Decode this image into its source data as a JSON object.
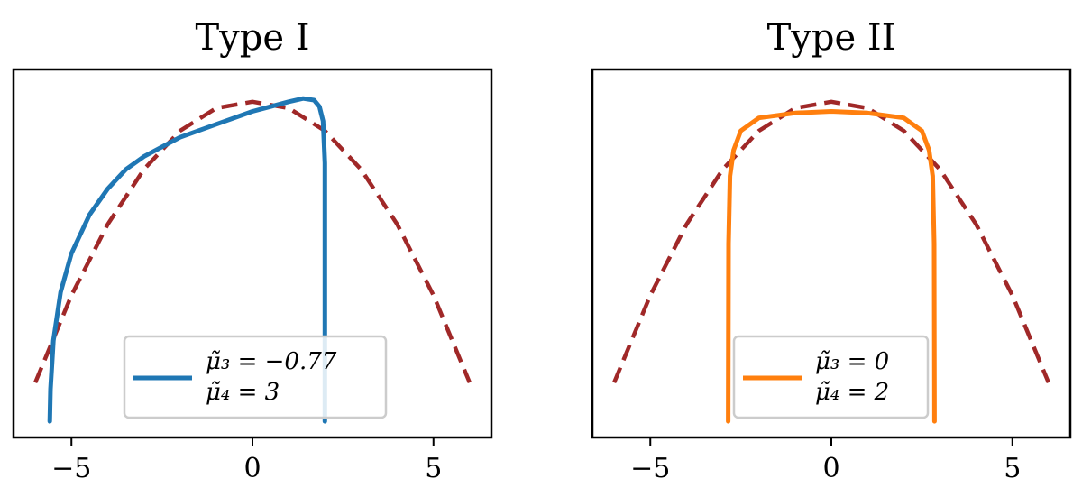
{
  "chart_data": [
    {
      "type": "line",
      "title": "Type I",
      "xlim": [
        -6.6,
        6.6
      ],
      "ylim": [
        -0.05,
        1.09
      ],
      "xticks": [
        -5,
        0,
        5
      ],
      "xtick_labels": [
        "−5",
        "0",
        "5"
      ],
      "y_ticks_shown": false,
      "grid": false,
      "legend_position": "lower-center",
      "series": [
        {
          "name": "μ̃₃ = −0.77 • μ̃₄ = 3",
          "legend_lines": [
            "μ̃₃ = −0.77",
            "μ̃₄ = 3"
          ],
          "style": "solid",
          "color": "#1f77b4",
          "x": [
            -5.6,
            -5.58,
            -5.5,
            -5.3,
            -5.0,
            -4.5,
            -4.0,
            -3.5,
            -3.0,
            -2.0,
            -1.0,
            0.0,
            0.5,
            1.0,
            1.4,
            1.7,
            1.85,
            1.95,
            2.0,
            2.0
          ],
          "y": [
            0.0,
            0.1,
            0.25,
            0.4,
            0.52,
            0.64,
            0.72,
            0.78,
            0.82,
            0.88,
            0.92,
            0.96,
            0.975,
            0.99,
            1.0,
            0.995,
            0.975,
            0.93,
            0.8,
            0.0
          ]
        },
        {
          "style": "dashed",
          "color": "#a02828",
          "x": [
            -6.0,
            -5.0,
            -4.0,
            -3.0,
            -2.0,
            -1.0,
            0.0,
            1.0,
            2.0,
            3.0,
            4.0,
            5.0,
            6.0
          ],
          "y": [
            0.12,
            0.39,
            0.61,
            0.78,
            0.9,
            0.97,
            0.99,
            0.97,
            0.9,
            0.78,
            0.61,
            0.39,
            0.12
          ]
        }
      ]
    },
    {
      "type": "line",
      "title": "Type II",
      "xlim": [
        -6.6,
        6.6
      ],
      "ylim": [
        -0.05,
        1.09
      ],
      "xticks": [
        -5,
        0,
        5
      ],
      "xtick_labels": [
        "−5",
        "0",
        "5"
      ],
      "y_ticks_shown": false,
      "grid": false,
      "legend_position": "lower-center",
      "series": [
        {
          "name": "μ̃₃ = 0 • μ̃₄ = 2",
          "legend_lines": [
            "μ̃₃ = 0",
            "μ̃₄ = 2"
          ],
          "style": "solid",
          "color": "#ff7f0e",
          "x": [
            -2.85,
            -2.84,
            -2.8,
            -2.7,
            -2.5,
            -2.0,
            -1.0,
            0.0,
            1.0,
            2.0,
            2.5,
            2.7,
            2.8,
            2.84,
            2.85
          ],
          "y": [
            0.0,
            0.55,
            0.76,
            0.84,
            0.9,
            0.94,
            0.955,
            0.96,
            0.955,
            0.94,
            0.9,
            0.84,
            0.76,
            0.55,
            0.0
          ]
        },
        {
          "style": "dashed",
          "color": "#a02828",
          "x": [
            -6.0,
            -5.0,
            -4.0,
            -3.0,
            -2.0,
            -1.0,
            0.0,
            1.0,
            2.0,
            3.0,
            4.0,
            5.0,
            6.0
          ],
          "y": [
            0.12,
            0.39,
            0.61,
            0.78,
            0.9,
            0.97,
            0.99,
            0.97,
            0.9,
            0.78,
            0.61,
            0.39,
            0.12
          ]
        }
      ]
    }
  ]
}
